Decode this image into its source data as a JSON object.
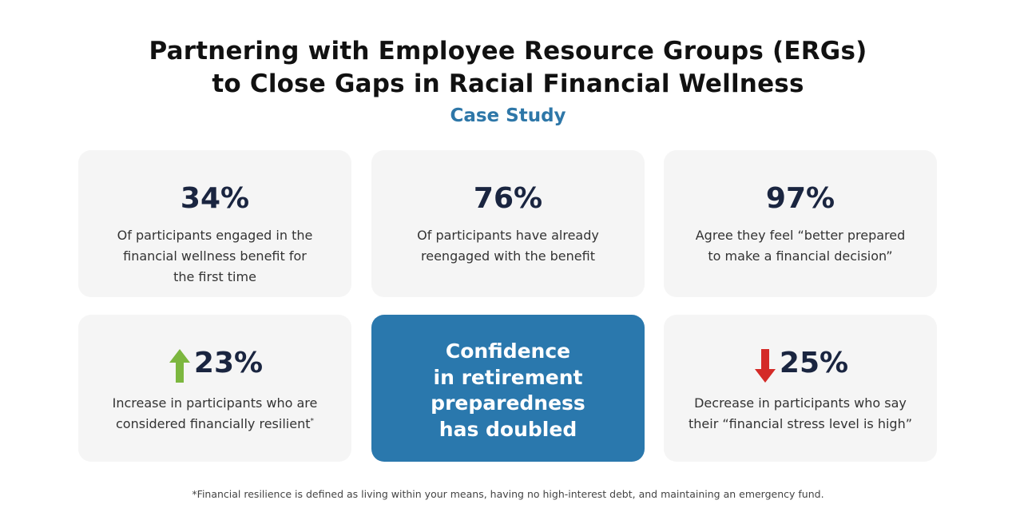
{
  "header": {
    "title": [
      "Partnering with Employee Resource Groups (ERGs)",
      "to Close Gaps in Racial Financial Wellness"
    ],
    "subtitle": "Case Study"
  },
  "cards": [
    {
      "stat": "34%",
      "description": [
        "Of participants engaged in the",
        "financial wellness benefit for",
        "the first time"
      ]
    },
    {
      "stat": "76%",
      "description": [
        "Of participants have already",
        "reengaged with the benefit"
      ]
    },
    {
      "stat": "97%",
      "description": [
        "Agree they feel “better prepared",
        "to make a financial decision”"
      ]
    },
    {
      "stat": "23%",
      "description": [
        "Increase in participants who are",
        "considered financially resilient"
      ],
      "footnote_marker": "*"
    },
    {
      "highlight": [
        "Confidence",
        "in retirement",
        "preparedness",
        "has doubled"
      ]
    },
    {
      "stat": "25%",
      "description": [
        "Decrease in participants who say",
        "their “financial stress level is high”"
      ]
    }
  ],
  "footnote": "*Financial resilience is defined as living within your means, having no high-interest debt, and maintaining an emergency fund."
}
